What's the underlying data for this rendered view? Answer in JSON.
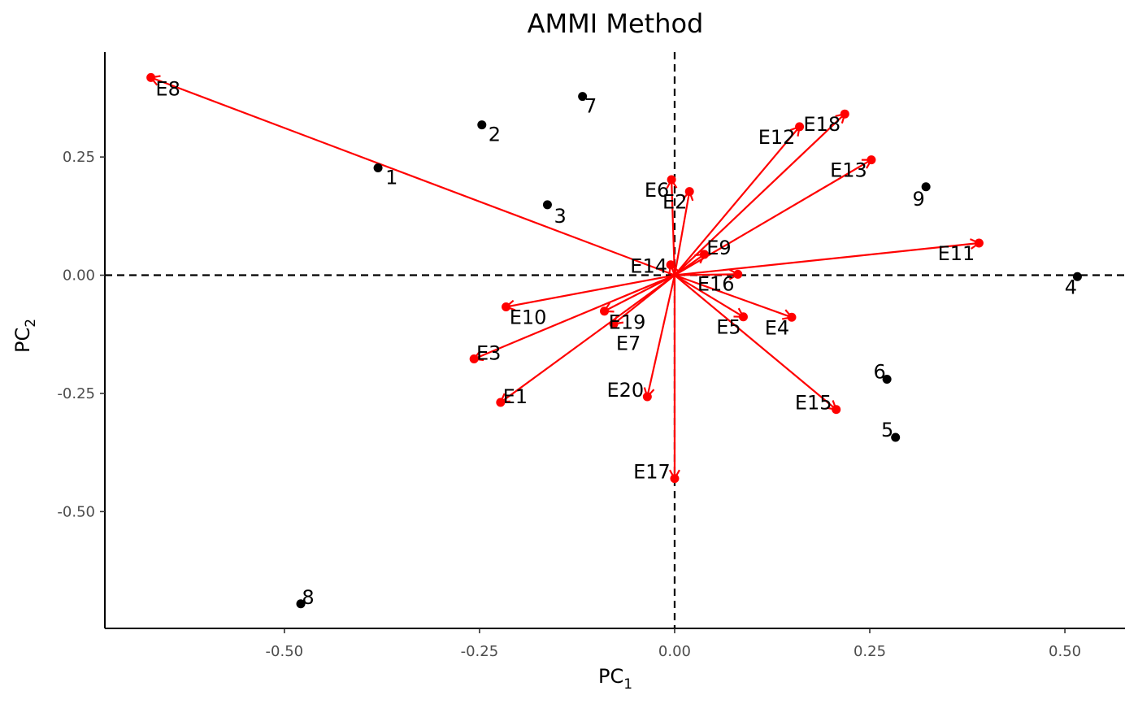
{
  "chart_data": {
    "type": "scatter",
    "title": "AMMI Method",
    "xlabel": {
      "base": "PC",
      "sub": "1"
    },
    "ylabel": {
      "base": "PC",
      "sub": "2"
    },
    "xlim": [
      -0.73,
      0.577
    ],
    "ylim": [
      -0.747,
      0.472
    ],
    "xticks": [
      {
        "value": -0.5,
        "label": "-0.50"
      },
      {
        "value": -0.25,
        "label": "-0.25"
      },
      {
        "value": 0,
        "label": "0.00"
      },
      {
        "value": 0.25,
        "label": "0.25"
      },
      {
        "value": 0.5,
        "label": "0.50"
      }
    ],
    "yticks": [
      {
        "value": 0.25,
        "label": "0.25"
      },
      {
        "value": 0,
        "label": "0.00"
      },
      {
        "value": -0.25,
        "label": "-0.25"
      },
      {
        "value": -0.5,
        "label": "-0.50"
      }
    ],
    "grid": false,
    "reference_lines": {
      "x": 0,
      "y": 0,
      "style": "dashed"
    },
    "colors": {
      "genotypes": "#000000",
      "environments": "#ff0000"
    },
    "genotypes": [
      {
        "label": "1",
        "x": -0.38,
        "y": 0.227
      },
      {
        "label": "2",
        "x": -0.247,
        "y": 0.318
      },
      {
        "label": "3",
        "x": -0.163,
        "y": 0.149
      },
      {
        "label": "4",
        "x": 0.516,
        "y": -0.003
      },
      {
        "label": "5",
        "x": 0.283,
        "y": -0.343
      },
      {
        "label": "6",
        "x": 0.272,
        "y": -0.22
      },
      {
        "label": "7",
        "x": -0.118,
        "y": 0.378
      },
      {
        "label": "8",
        "x": -0.479,
        "y": -0.695
      },
      {
        "label": "9",
        "x": 0.322,
        "y": 0.187
      }
    ],
    "environments": [
      {
        "label": "E1",
        "x": -0.223,
        "y": -0.269
      },
      {
        "label": "E2",
        "x": 0.019,
        "y": 0.177
      },
      {
        "label": "E3",
        "x": -0.257,
        "y": -0.177
      },
      {
        "label": "E4",
        "x": 0.15,
        "y": -0.089
      },
      {
        "label": "E5",
        "x": 0.088,
        "y": -0.088
      },
      {
        "label": "E6",
        "x": -0.004,
        "y": 0.202
      },
      {
        "label": "E7",
        "x": -0.078,
        "y": -0.103
      },
      {
        "label": "E8",
        "x": -0.671,
        "y": 0.418
      },
      {
        "label": "E9",
        "x": 0.038,
        "y": 0.044
      },
      {
        "label": "E10",
        "x": -0.216,
        "y": -0.067
      },
      {
        "label": "E11",
        "x": 0.39,
        "y": 0.068
      },
      {
        "label": "E12",
        "x": 0.16,
        "y": 0.314
      },
      {
        "label": "E13",
        "x": 0.252,
        "y": 0.244
      },
      {
        "label": "E14",
        "x": -0.005,
        "y": 0.022
      },
      {
        "label": "E15",
        "x": 0.207,
        "y": -0.284
      },
      {
        "label": "E16",
        "x": 0.081,
        "y": 0.002
      },
      {
        "label": "E17",
        "x": 0.0,
        "y": -0.43
      },
      {
        "label": "E18",
        "x": 0.218,
        "y": 0.341
      },
      {
        "label": "E19",
        "x": -0.09,
        "y": -0.076
      },
      {
        "label": "E20",
        "x": -0.035,
        "y": -0.257
      }
    ]
  }
}
